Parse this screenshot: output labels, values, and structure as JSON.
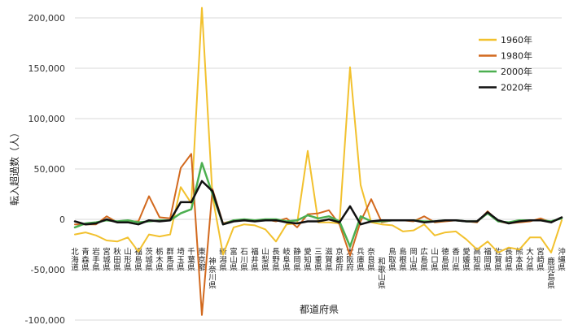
{
  "chart_data": {
    "type": "line",
    "title": "",
    "xlabel": "都道府県",
    "ylabel": "転入超過数（人）",
    "ylim": [
      -100000,
      200000
    ],
    "yticks": [
      200000,
      150000,
      100000,
      50000,
      0,
      -50000,
      -100000
    ],
    "ytick_labels": [
      "200,000",
      "150,000",
      "100,000",
      "50,000",
      "0",
      "-50,000",
      "-100,000"
    ],
    "grid": true,
    "legend_position": "top-right",
    "categories": [
      "北海道",
      "青森県",
      "岩手県",
      "宮城県",
      "秋田県",
      "山形県",
      "福島県",
      "茨城県",
      "栃木県",
      "群馬県",
      "埼玉県",
      "千葉県",
      "東京都",
      "神奈川県",
      "新潟県",
      "富山県",
      "石川県",
      "福井県",
      "山梨県",
      "長野県",
      "岐阜県",
      "静岡県",
      "愛知県",
      "三重県",
      "滋賀県",
      "京都府",
      "大阪府",
      "兵庫県",
      "奈良県",
      "和歌山県",
      "鳥取県",
      "島根県",
      "岡山県",
      "広島県",
      "山口県",
      "徳島県",
      "香川県",
      "愛媛県",
      "高知県",
      "福岡県",
      "佐賀県",
      "長崎県",
      "熊本県",
      "大分県",
      "宮崎県",
      "鹿児島県",
      "沖縄県"
    ],
    "series": [
      {
        "name": "1960年",
        "color": "#f2c12e",
        "width": 2,
        "values": [
          -15000,
          -13000,
          -16000,
          -21000,
          -22000,
          -18000,
          -32000,
          -15000,
          -17000,
          -15000,
          32000,
          16000,
          210000,
          23000,
          -35000,
          -8000,
          -5000,
          -6000,
          -10000,
          -22000,
          -5000,
          -4000,
          68000,
          -3000,
          -3000,
          -4000,
          151000,
          34000,
          -3000,
          -5000,
          -6000,
          -12000,
          -11000,
          -5000,
          -16000,
          -13000,
          -12000,
          -20000,
          -30000,
          -22000,
          -33000,
          -28000,
          -30000,
          -18000,
          -18000,
          -33000,
          -1000
        ]
      },
      {
        "name": "1980年",
        "color": "#d2691e",
        "width": 2,
        "values": [
          -5000,
          -5000,
          -5000,
          3000,
          -3000,
          -2000,
          -2000,
          23000,
          2000,
          1000,
          51000,
          65000,
          -95000,
          30000,
          -4000,
          -1000,
          0,
          -1000,
          0,
          -2000,
          1000,
          -8000,
          5000,
          6000,
          9000,
          -5000,
          -36000,
          -2000,
          20000,
          -3000,
          -1000,
          -1000,
          -2000,
          3000,
          -3000,
          -2000,
          -1000,
          -2000,
          -3000,
          8000,
          -2000,
          -4000,
          -3000,
          -2000,
          1000,
          -3000,
          2000
        ]
      },
      {
        "name": "2000年",
        "color": "#4caf50",
        "width": 2.5,
        "values": [
          -8000,
          -4000,
          -3000,
          -1000,
          -2000,
          -1000,
          -3000,
          -2000,
          -1000,
          -1000,
          6000,
          10000,
          56000,
          25000,
          -5000,
          -1000,
          0,
          -1000,
          0,
          0,
          -2000,
          -1000,
          4000,
          1000,
          3000,
          -2000,
          -27000,
          3000,
          -2000,
          -2000,
          -1000,
          -1000,
          -1000,
          -2000,
          -2000,
          -1000,
          -1000,
          -2000,
          -2000,
          6000,
          -2000,
          -3000,
          -1000,
          -1000,
          -1000,
          -2000,
          1000
        ]
      },
      {
        "name": "2020年",
        "color": "#111111",
        "width": 2.5,
        "values": [
          -2000,
          -5000,
          -4000,
          0,
          -3000,
          -3000,
          -5000,
          -1000,
          -2000,
          -1000,
          17000,
          17000,
          38000,
          28000,
          -5000,
          -2000,
          -1000,
          -2000,
          -1000,
          -1000,
          -3000,
          -4000,
          -2000,
          -2000,
          0,
          -3000,
          13000,
          -5000,
          -2000,
          -1000,
          -1000,
          -1000,
          -1000,
          -3000,
          -2000,
          -1000,
          -1000,
          -2000,
          -2000,
          7000,
          -1000,
          -4000,
          -2000,
          -1000,
          -1000,
          -3000,
          2000
        ]
      }
    ]
  }
}
